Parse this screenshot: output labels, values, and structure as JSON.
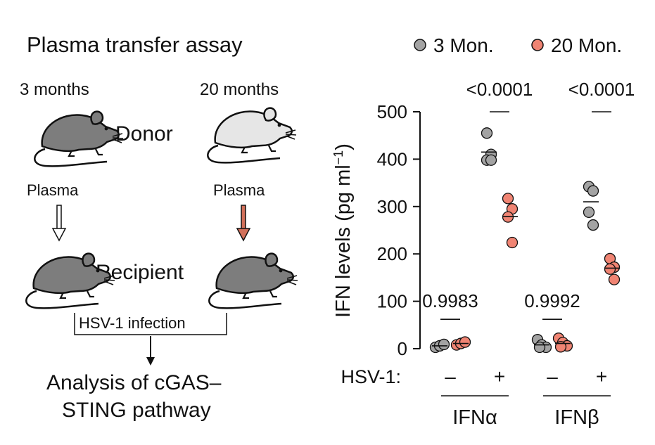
{
  "schematic": {
    "title": "Plasma transfer assay",
    "donor_left_age": "3 months",
    "donor_right_age": "20 months",
    "donor_label": "Donor",
    "plasma_left": "Plasma",
    "plasma_right": "Plasma",
    "recipient_label": "Recipient",
    "infection_label": "HSV-1 infection",
    "analysis_line1": "Analysis of cGAS–",
    "analysis_line2": "STING pathway",
    "colors": {
      "mouse_dark": "#7d7d7d",
      "mouse_light": "#e6e6e6",
      "arrow_right": "#d2705a"
    }
  },
  "legend": {
    "young": "3 Mon.",
    "old": "20 Mon."
  },
  "chart_data": {
    "type": "scatter",
    "ylabel_main": "IFN levels (pg ml",
    "ylabel_sup": "−1",
    "ylabel_close": ")",
    "ylim": [
      0,
      500
    ],
    "yticks": [
      "0",
      "100",
      "200",
      "300",
      "400",
      "500"
    ],
    "hsv_label": "HSV-1:",
    "hsv_states": [
      "–",
      "+",
      "–",
      "+"
    ],
    "groups": [
      "IFNα",
      "IFNβ"
    ],
    "colors": {
      "young": "#a3a3a3",
      "old": "#f08473"
    },
    "series": [
      {
        "name": "IFNα HSV-1 – 3 Mon.",
        "group": 0,
        "hsv": 0,
        "cohort": "young",
        "values": [
          3,
          6,
          9
        ]
      },
      {
        "name": "IFNα HSV-1 – 20 Mon.",
        "group": 0,
        "hsv": 0,
        "cohort": "old",
        "values": [
          8,
          11,
          14
        ]
      },
      {
        "name": "IFNα HSV-1 + 3 Mon.",
        "group": 0,
        "hsv": 1,
        "cohort": "young",
        "values": [
          455,
          410,
          398,
          398
        ]
      },
      {
        "name": "IFNα HSV-1 + 20 Mon.",
        "group": 0,
        "hsv": 1,
        "cohort": "old",
        "values": [
          317,
          295,
          278,
          224
        ]
      },
      {
        "name": "IFNβ HSV-1 – 3 Mon.",
        "group": 1,
        "hsv": 0,
        "cohort": "young",
        "values": [
          19,
          8,
          3,
          3
        ]
      },
      {
        "name": "IFNβ HSV-1 – 20 Mon.",
        "group": 1,
        "hsv": 0,
        "cohort": "old",
        "values": [
          22,
          13,
          6,
          4
        ]
      },
      {
        "name": "IFNβ HSV-1 + 3 Mon.",
        "group": 1,
        "hsv": 1,
        "cohort": "young",
        "values": [
          342,
          333,
          288,
          261
        ]
      },
      {
        "name": "IFNβ HSV-1 + 20 Mon.",
        "group": 1,
        "hsv": 1,
        "cohort": "old",
        "values": [
          190,
          172,
          168,
          146
        ]
      }
    ],
    "means": [
      {
        "group": 0,
        "hsv": 0,
        "cohort": "young",
        "value": 6
      },
      {
        "group": 0,
        "hsv": 0,
        "cohort": "old",
        "value": 11
      },
      {
        "group": 0,
        "hsv": 1,
        "cohort": "young",
        "value": 415
      },
      {
        "group": 0,
        "hsv": 1,
        "cohort": "old",
        "value": 279
      },
      {
        "group": 1,
        "hsv": 0,
        "cohort": "young",
        "value": 8
      },
      {
        "group": 1,
        "hsv": 0,
        "cohort": "old",
        "value": 11
      },
      {
        "group": 1,
        "hsv": 1,
        "cohort": "young",
        "value": 310
      },
      {
        "group": 1,
        "hsv": 1,
        "cohort": "old",
        "value": 170
      }
    ],
    "pvalues": [
      {
        "group": 0,
        "hsv": 0,
        "text": "0.9983",
        "bar_at": 62
      },
      {
        "group": 0,
        "hsv": 1,
        "text": "<0.0001",
        "bar_at": 500
      },
      {
        "group": 1,
        "hsv": 0,
        "text": "0.9992",
        "bar_at": 62
      },
      {
        "group": 1,
        "hsv": 1,
        "text": "<0.0001",
        "bar_at": 500
      }
    ]
  }
}
